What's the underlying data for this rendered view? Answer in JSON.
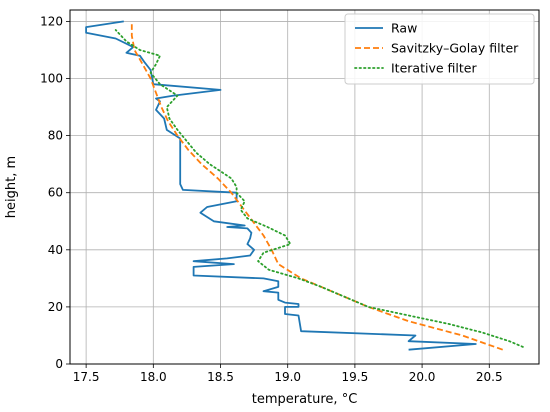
{
  "chart_data": {
    "type": "line",
    "title": "",
    "xlabel": "temperature, °C",
    "ylabel": "height, m",
    "xlim": [
      17.38,
      20.87
    ],
    "ylim": [
      0,
      124
    ],
    "xticks": [
      17.5,
      18.0,
      18.5,
      19.0,
      19.5,
      20.0,
      20.5
    ],
    "xtick_labels": [
      "17.5",
      "18.0",
      "18.5",
      "19.0",
      "19.5",
      "20.0",
      "20.5"
    ],
    "yticks": [
      0,
      20,
      40,
      60,
      80,
      100,
      120
    ],
    "ytick_labels": [
      "0",
      "20",
      "40",
      "60",
      "80",
      "100",
      "120"
    ],
    "grid": true,
    "legend_position": "top-right",
    "series": [
      {
        "name": "Raw",
        "color": "#1f77b4",
        "style": "solid",
        "points": [
          [
            19.9,
            5
          ],
          [
            20.4,
            7
          ],
          [
            19.9,
            8
          ],
          [
            19.95,
            10
          ],
          [
            19.1,
            11.5
          ],
          [
            19.08,
            17
          ],
          [
            18.98,
            17.5
          ],
          [
            18.98,
            20
          ],
          [
            19.08,
            20
          ],
          [
            19.08,
            21
          ],
          [
            18.98,
            21.5
          ],
          [
            18.93,
            22.5
          ],
          [
            18.93,
            25
          ],
          [
            18.82,
            25.5
          ],
          [
            18.93,
            27
          ],
          [
            18.93,
            29
          ],
          [
            18.82,
            30
          ],
          [
            18.3,
            31
          ],
          [
            18.3,
            34
          ],
          [
            18.6,
            35
          ],
          [
            18.3,
            36
          ],
          [
            18.55,
            37
          ],
          [
            18.72,
            38
          ],
          [
            18.75,
            40
          ],
          [
            18.7,
            42
          ],
          [
            18.72,
            44
          ],
          [
            18.73,
            46
          ],
          [
            18.7,
            47.5
          ],
          [
            18.55,
            48
          ],
          [
            18.68,
            48.5
          ],
          [
            18.45,
            50
          ],
          [
            18.35,
            53
          ],
          [
            18.4,
            55
          ],
          [
            18.62,
            57
          ],
          [
            18.62,
            60
          ],
          [
            18.22,
            61
          ],
          [
            18.2,
            63
          ],
          [
            18.2,
            77
          ],
          [
            18.2,
            79
          ],
          [
            18.1,
            82
          ],
          [
            18.08,
            86
          ],
          [
            18.02,
            89
          ],
          [
            18.05,
            92
          ],
          [
            18.02,
            93
          ],
          [
            18.15,
            94
          ],
          [
            18.5,
            96
          ],
          [
            18.0,
            98
          ],
          [
            17.98,
            103
          ],
          [
            17.93,
            106
          ],
          [
            17.9,
            108
          ],
          [
            17.8,
            109
          ],
          [
            17.85,
            111
          ],
          [
            17.72,
            114
          ],
          [
            17.5,
            116
          ],
          [
            17.5,
            118
          ],
          [
            17.78,
            120
          ]
        ]
      },
      {
        "name": "Savitzky–Golay filter",
        "color": "#ff7f0e",
        "style": "dashed",
        "points": [
          [
            20.6,
            5
          ],
          [
            20.3,
            10
          ],
          [
            19.9,
            15
          ],
          [
            19.6,
            20
          ],
          [
            19.35,
            25
          ],
          [
            19.1,
            30
          ],
          [
            18.93,
            35
          ],
          [
            18.88,
            40
          ],
          [
            18.82,
            45
          ],
          [
            18.74,
            50
          ],
          [
            18.66,
            55
          ],
          [
            18.58,
            60
          ],
          [
            18.48,
            65
          ],
          [
            18.36,
            70
          ],
          [
            18.26,
            75
          ],
          [
            18.18,
            80
          ],
          [
            18.11,
            85
          ],
          [
            18.06,
            90
          ],
          [
            18.02,
            95
          ],
          [
            17.98,
            100
          ],
          [
            17.92,
            105
          ],
          [
            17.86,
            110
          ],
          [
            17.84,
            115
          ],
          [
            17.84,
            119
          ]
        ]
      },
      {
        "name": "Iterative filter",
        "color": "#2ca02c",
        "style": "dotted",
        "points": [
          [
            20.75,
            6
          ],
          [
            20.65,
            8
          ],
          [
            20.45,
            11
          ],
          [
            20.2,
            14
          ],
          [
            19.9,
            17
          ],
          [
            19.6,
            20
          ],
          [
            19.4,
            24
          ],
          [
            19.25,
            27
          ],
          [
            19.08,
            30
          ],
          [
            18.86,
            33
          ],
          [
            18.78,
            36
          ],
          [
            18.82,
            39
          ],
          [
            19.02,
            42
          ],
          [
            18.98,
            45
          ],
          [
            18.85,
            48
          ],
          [
            18.7,
            51
          ],
          [
            18.65,
            54
          ],
          [
            18.68,
            57
          ],
          [
            18.62,
            60
          ],
          [
            18.62,
            62
          ],
          [
            18.58,
            65
          ],
          [
            18.42,
            70
          ],
          [
            18.32,
            74
          ],
          [
            18.25,
            78
          ],
          [
            18.18,
            82
          ],
          [
            18.12,
            86
          ],
          [
            18.1,
            90
          ],
          [
            18.18,
            94
          ],
          [
            18.05,
            98
          ],
          [
            17.98,
            102
          ],
          [
            18.02,
            105
          ],
          [
            18.05,
            108
          ],
          [
            17.9,
            110
          ],
          [
            17.8,
            113
          ],
          [
            17.72,
            117
          ]
        ]
      }
    ]
  }
}
